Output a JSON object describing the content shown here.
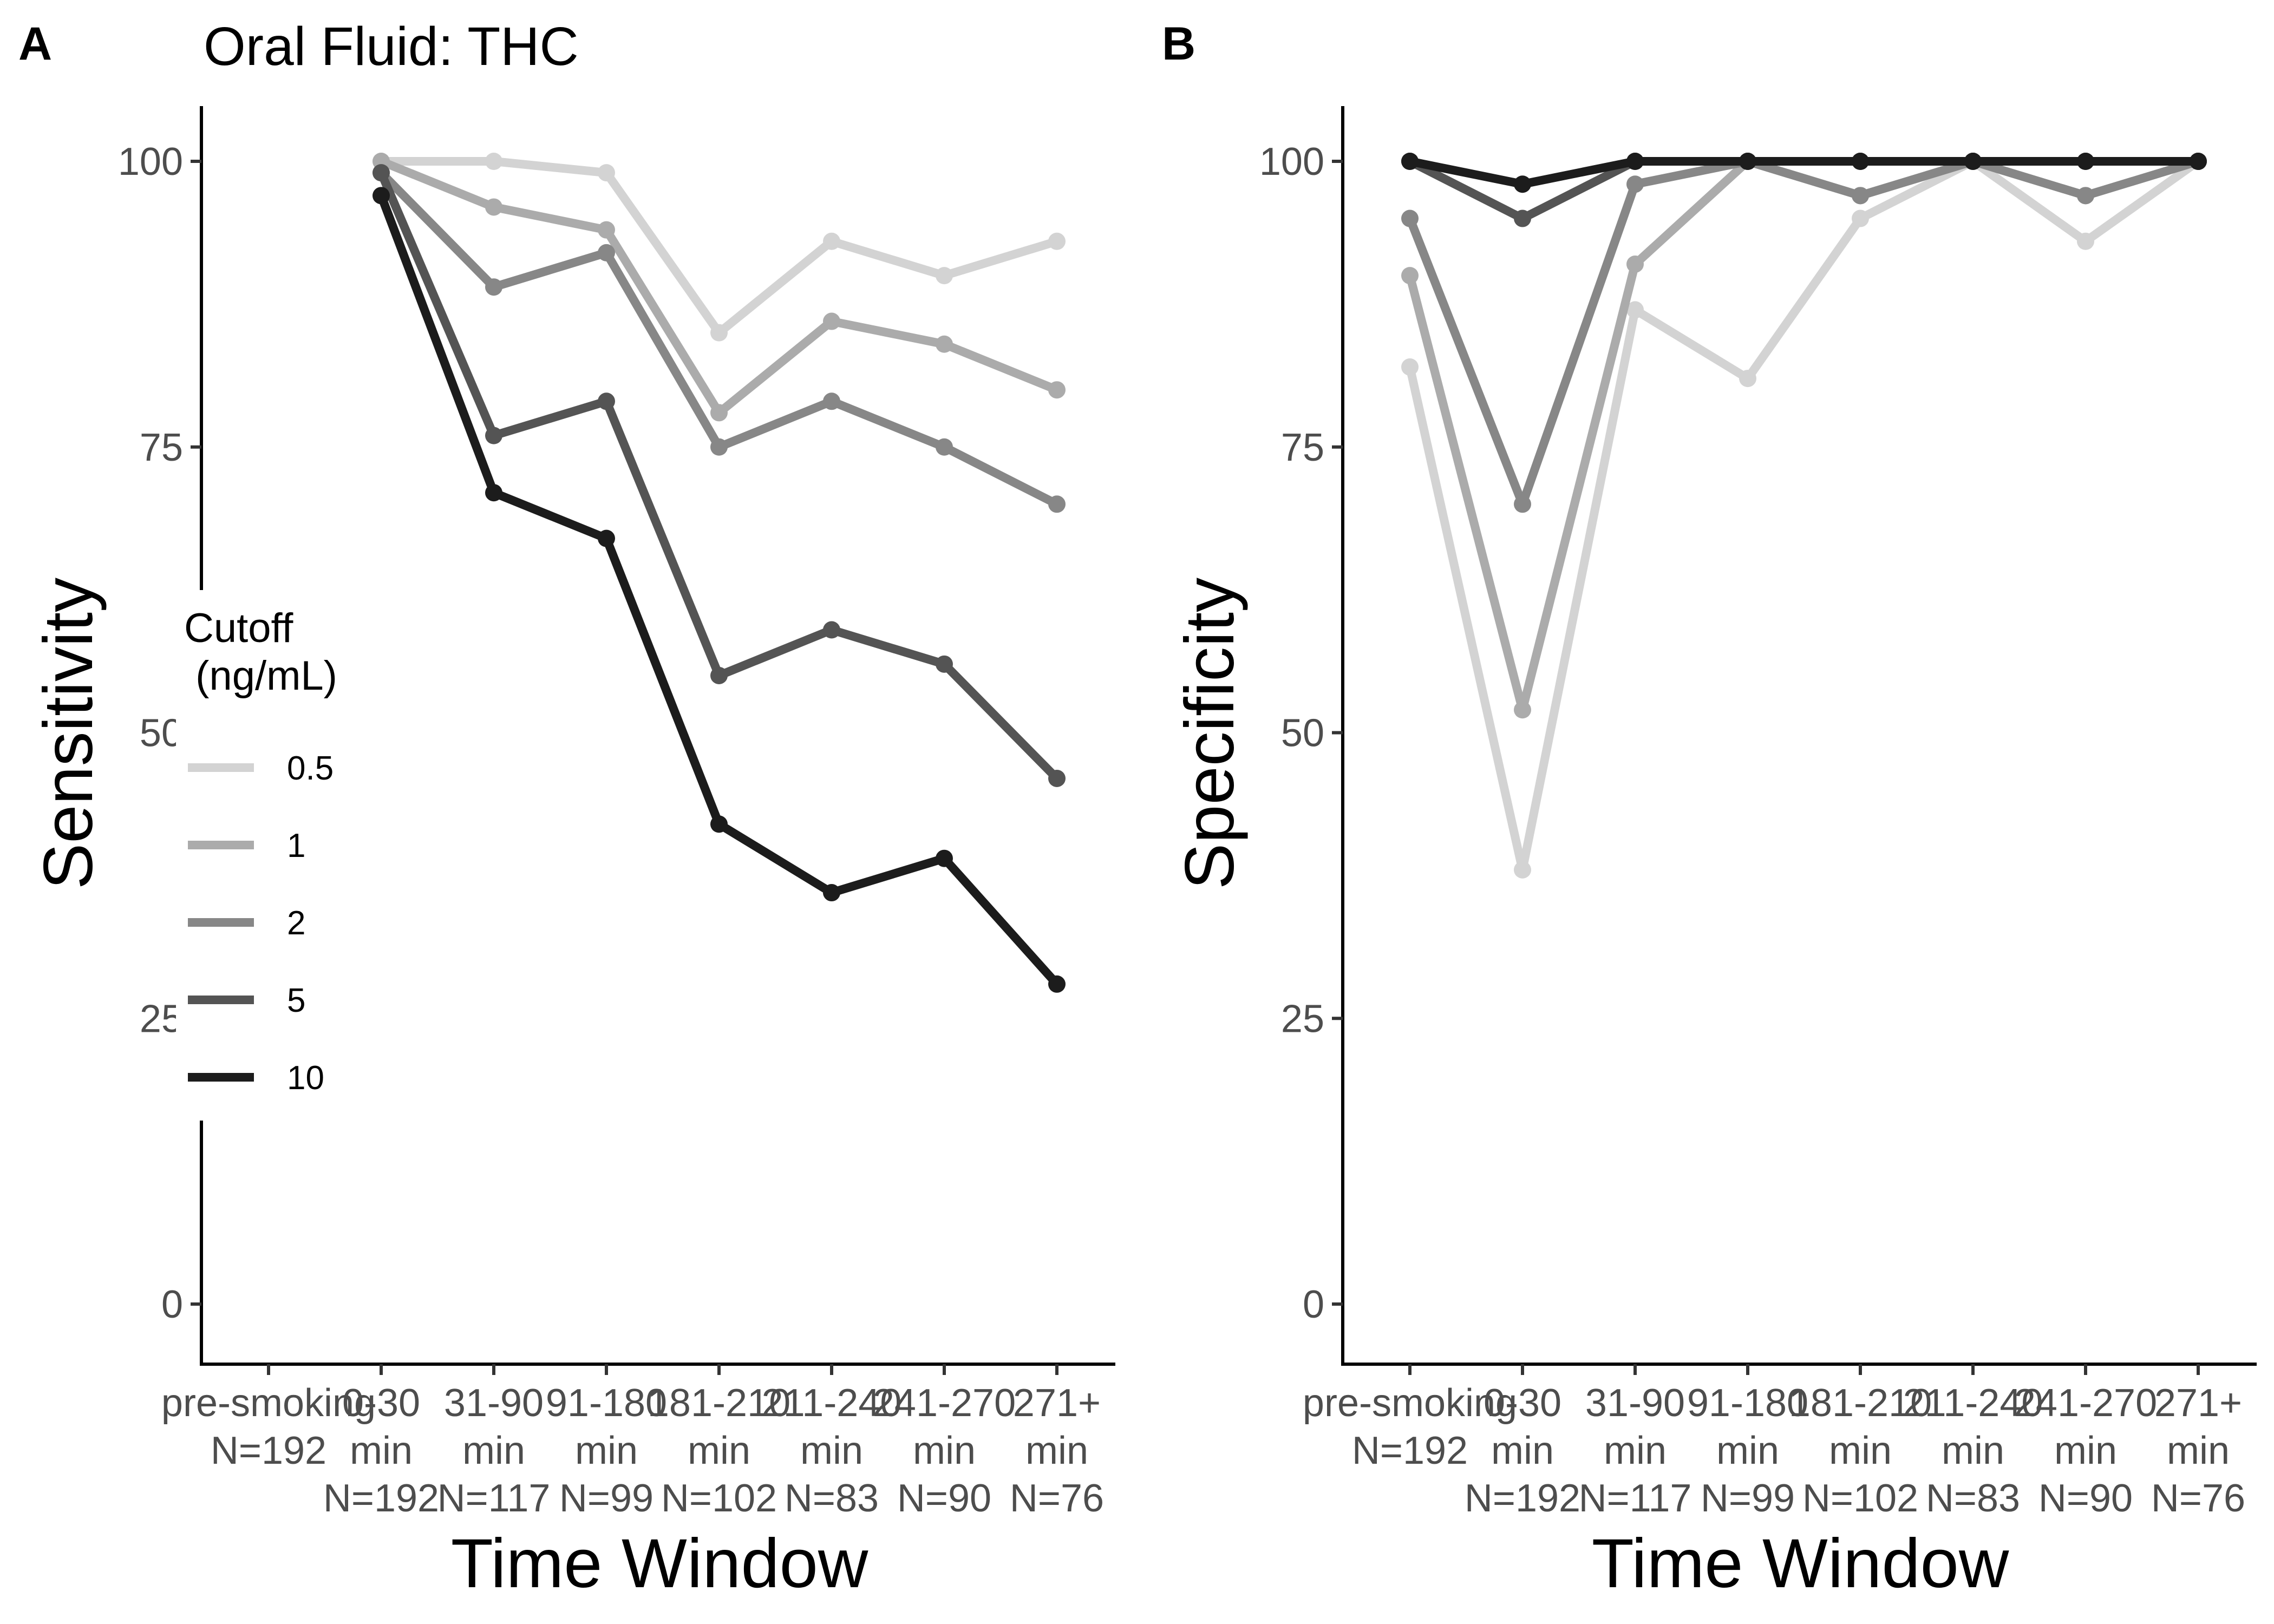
{
  "chart_data": [
    {
      "type": "line",
      "panel_label": "A",
      "title": "Oral Fluid: THC",
      "xlabel": "Time Window",
      "ylabel": "Sensitivity",
      "ylim": [
        0,
        100
      ],
      "yticks": [
        0,
        25,
        50,
        75,
        100
      ],
      "ytick_labels": [
        "0",
        "25",
        "50",
        "75",
        "100"
      ],
      "categories": [
        [
          "pre-smoking",
          "N=192"
        ],
        [
          "0-30",
          "min",
          "N=192"
        ],
        [
          "31-90",
          "min",
          "N=117"
        ],
        [
          "91-180",
          "min",
          "N=99"
        ],
        [
          "181-210",
          "min",
          "N=102"
        ],
        [
          "211-240",
          "min",
          "N=83"
        ],
        [
          "241-270",
          "min",
          "N=90"
        ],
        [
          "271+",
          "min",
          "N=76"
        ]
      ],
      "series": [
        {
          "name": "0.5",
          "color": "#d3d3d3",
          "values": [
            null,
            100,
            100,
            99,
            85,
            93,
            90,
            93
          ]
        },
        {
          "name": "1",
          "color": "#ababab",
          "values": [
            null,
            100,
            96,
            94,
            78,
            86,
            84,
            80
          ]
        },
        {
          "name": "2",
          "color": "#878787",
          "values": [
            null,
            99,
            89,
            92,
            75,
            79,
            75,
            70
          ]
        },
        {
          "name": "5",
          "color": "#545454",
          "values": [
            null,
            99,
            76,
            79,
            55,
            59,
            56,
            46
          ]
        },
        {
          "name": "10",
          "color": "#1c1c1c",
          "values": [
            null,
            97,
            71,
            67,
            42,
            36,
            39,
            28
          ]
        }
      ],
      "legend": {
        "title": "Cutoff\n (ng/mL)",
        "placement": "left, overlapping plot",
        "entries": [
          "0.5",
          "1",
          "2",
          "5",
          "10"
        ]
      },
      "grid": false
    },
    {
      "type": "line",
      "panel_label": "B",
      "title": "",
      "xlabel": "Time Window",
      "ylabel": "Specificity",
      "ylim": [
        0,
        100
      ],
      "yticks": [
        0,
        25,
        50,
        75,
        100
      ],
      "ytick_labels": [
        "0",
        "25",
        "50",
        "75",
        "100"
      ],
      "categories": [
        [
          "pre-smoking",
          "N=192"
        ],
        [
          "0-30",
          "min",
          "N=192"
        ],
        [
          "31-90",
          "min",
          "N=117"
        ],
        [
          "91-180",
          "min",
          "N=99"
        ],
        [
          "181-210",
          "min",
          "N=102"
        ],
        [
          "211-240",
          "min",
          "N=83"
        ],
        [
          "241-270",
          "min",
          "N=90"
        ],
        [
          "271+",
          "min",
          "N=76"
        ]
      ],
      "series": [
        {
          "name": "0.5",
          "color": "#d3d3d3",
          "values": [
            82,
            38,
            87,
            81,
            95,
            100,
            93,
            100
          ]
        },
        {
          "name": "1",
          "color": "#ababab",
          "values": [
            90,
            52,
            91,
            100,
            97,
            100,
            97,
            100
          ]
        },
        {
          "name": "2",
          "color": "#878787",
          "values": [
            95,
            70,
            98,
            100,
            97,
            100,
            97,
            100
          ]
        },
        {
          "name": "5",
          "color": "#545454",
          "values": [
            100,
            95,
            100,
            100,
            100,
            100,
            100,
            100
          ]
        },
        {
          "name": "10",
          "color": "#1c1c1c",
          "values": [
            100,
            98,
            100,
            100,
            100,
            100,
            100,
            100
          ]
        }
      ],
      "grid": false
    }
  ]
}
